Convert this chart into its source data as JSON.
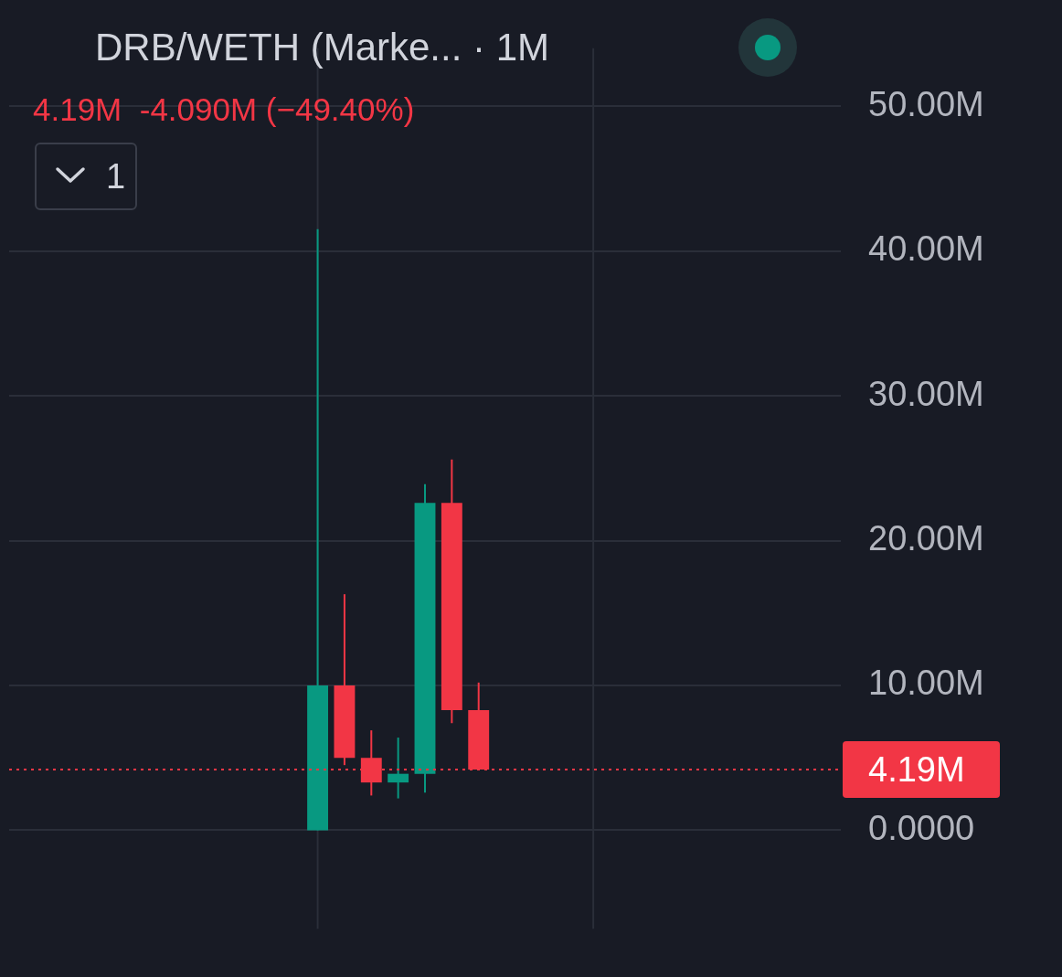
{
  "chart_data": {
    "type": "candlestick",
    "title": "DRB/WETH (Marke... · 1M",
    "subtitle": "4.19M  -4.090M (−49.40%)",
    "categories": [
      null,
      null,
      null,
      null,
      null,
      null,
      null,
      null,
      null,
      null,
      null,
      null,
      null,
      null,
      null,
      null,
      null,
      null,
      null,
      null,
      null,
      null,
      null,
      null,
      null,
      null,
      null,
      null,
      null,
      null,
      null
    ],
    "ohlc": [
      null,
      null,
      null,
      null,
      null,
      null,
      null,
      null,
      null,
      null,
      null,
      [
        0,
        41.5,
        0,
        10
      ],
      [
        10,
        16.3,
        4.5,
        5.0
      ],
      [
        5.0,
        6.9,
        2.4,
        3.3
      ],
      [
        3.3,
        6.4,
        2.2,
        3.9
      ],
      [
        3.9,
        23.9,
        2.6,
        22.6
      ],
      [
        22.6,
        25.6,
        7.4,
        8.3
      ],
      [
        8.3,
        10.2,
        4.19,
        4.19
      ],
      null,
      null,
      null,
      null,
      null,
      null,
      null,
      null,
      null,
      null,
      null,
      null,
      null
    ],
    "ylim": [
      -6.8,
      54
    ],
    "yticks": [
      {
        "value": 0,
        "label": "0.0000"
      },
      {
        "value": 10,
        "label": "10.00M"
      },
      {
        "value": 20,
        "label": "20.00M"
      },
      {
        "value": 30,
        "label": "30.00M"
      },
      {
        "value": 40,
        "label": "40.00M"
      },
      {
        "value": 50,
        "label": "50.00M"
      }
    ],
    "ref_lines": [
      {
        "axis": "y",
        "value": 4.19,
        "label": "4.19M",
        "color": "#f23645",
        "line_style": "dotted"
      }
    ],
    "grid": "y",
    "tick_labels": "y",
    "annotations": [
      "1"
    ]
  }
}
